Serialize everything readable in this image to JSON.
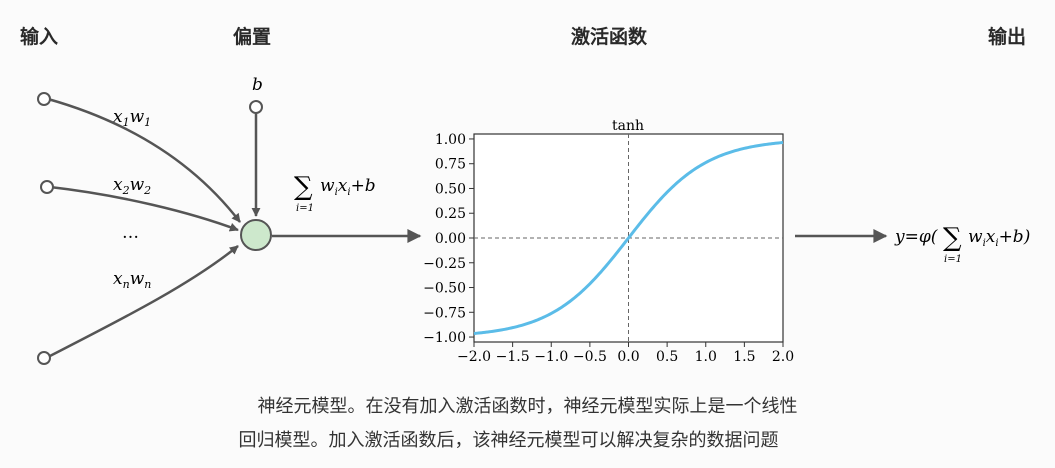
{
  "headers": {
    "input": "输入",
    "bias": "偏置",
    "activation": "激活函数",
    "output": "输出"
  },
  "inputs": {
    "edge1": {
      "var": "x",
      "sub1": "1",
      "w": "w",
      "sub2": "1"
    },
    "edge2": {
      "var": "x",
      "sub1": "2",
      "w": "w",
      "sub2": "2"
    },
    "ellipsis": "…",
    "edgen": {
      "var": "x",
      "sub1": "n",
      "w": "w",
      "sub2": "n"
    },
    "bias_label": "b"
  },
  "sum_formula": {
    "sigma": "∑",
    "lower": "i=1",
    "body_w": "w",
    "body_wsub": "i",
    "body_x": "x",
    "body_xsub": "i",
    "plus_b": "+b"
  },
  "output_formula": {
    "lhs": "y=φ(",
    "sigma": "∑",
    "lower": "i=1",
    "body_w": "w",
    "body_wsub": "i",
    "body_x": "x",
    "body_xsub": "i",
    "rhs": "+b)"
  },
  "colors": {
    "node_fill": "#cde8cc",
    "line": "#555555",
    "curve": "#5bbce8"
  },
  "caption": {
    "line1": "神经元模型。在没有加入激活函数时，神经元模型实际上是一个线性",
    "line2": "回归模型。加入激活函数后，该神经元模型可以解决复杂的数据问题"
  },
  "chart_data": {
    "type": "line",
    "title": "tanh",
    "function": "tanh",
    "xlim": [
      -2.0,
      2.0
    ],
    "ylim": [
      -1.05,
      1.05
    ],
    "x_ticks": [
      -2.0,
      -1.5,
      -1.0,
      -0.5,
      0.0,
      0.5,
      1.0,
      1.5,
      2.0
    ],
    "x_tick_labels": [
      "−2.0",
      "−1.5",
      "−1.0",
      "−0.5",
      "0.0",
      "0.5",
      "1.0",
      "1.5",
      "2.0"
    ],
    "y_ticks": [
      1.0,
      0.75,
      0.5,
      0.25,
      0.0,
      -0.25,
      -0.5,
      -0.75,
      -1.0
    ],
    "y_tick_labels": [
      "1.00",
      "0.75",
      "0.50",
      "0.25",
      "0.00",
      "−0.25",
      "−0.50",
      "−0.75",
      "−1.00"
    ],
    "reference_lines": {
      "x": 0.0,
      "y": 0.0,
      "style": "dashed"
    },
    "grid": false,
    "legend": "none"
  }
}
